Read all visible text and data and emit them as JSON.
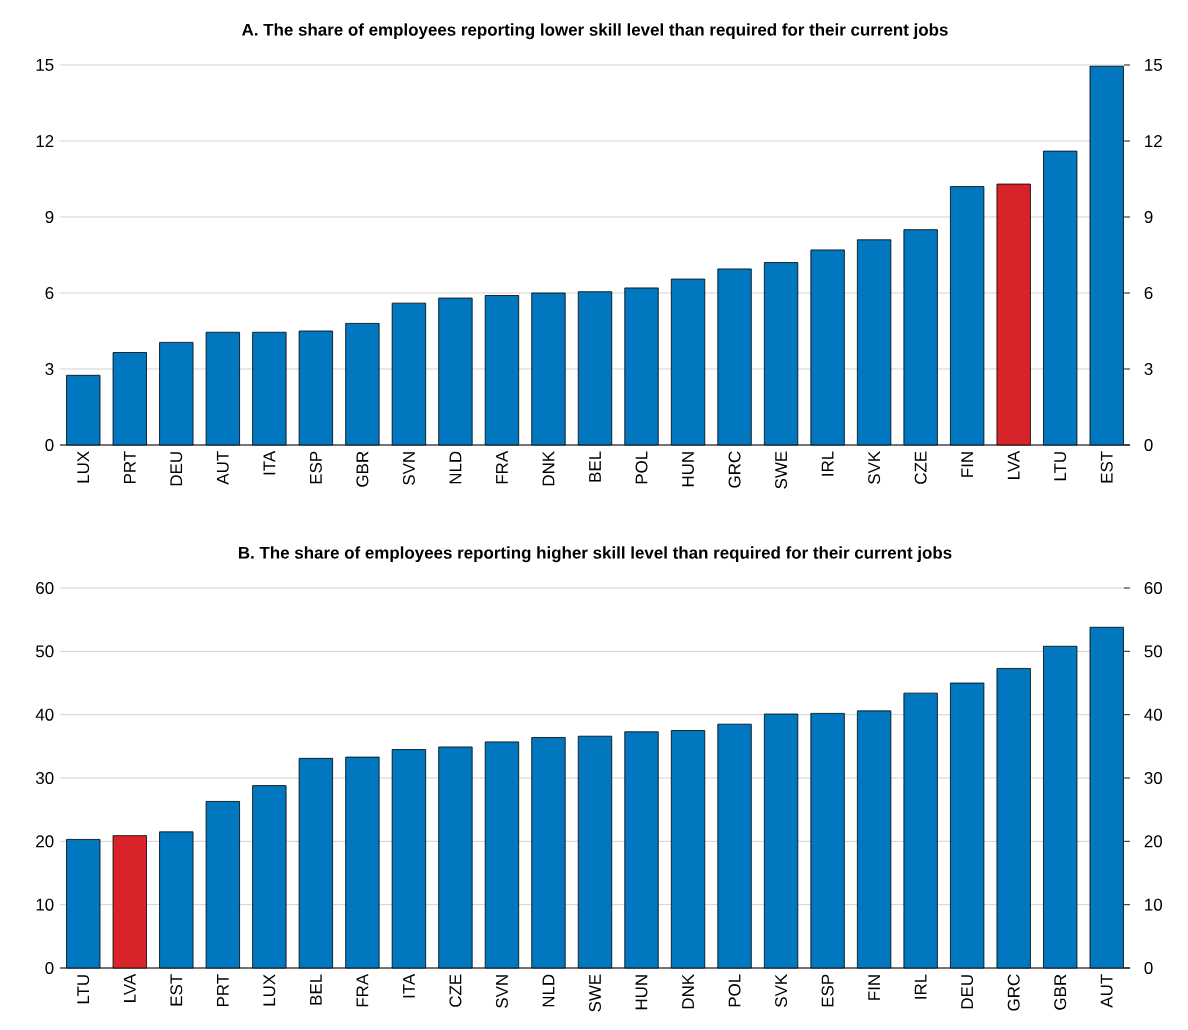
{
  "chart_data": [
    {
      "type": "bar",
      "title": "**A. The share of employees reporting lower skill level than required for their current jobs**",
      "categories": [
        "LUX",
        "PRT",
        "DEU",
        "AUT",
        "ITA",
        "ESP",
        "GBR",
        "SVN",
        "NLD",
        "FRA",
        "DNK",
        "BEL",
        "POL",
        "HUN",
        "GRC",
        "SWE",
        "IRL",
        "SVK",
        "CZE",
        "FIN",
        "LVA",
        "LTU",
        "EST"
      ],
      "values": [
        2.75,
        3.65,
        4.05,
        4.45,
        4.45,
        4.5,
        4.8,
        5.6,
        5.8,
        5.9,
        6.0,
        6.05,
        6.2,
        6.55,
        6.95,
        7.2,
        7.7,
        8.1,
        8.5,
        10.2,
        10.3,
        11.6,
        14.95
      ],
      "colors": [
        "#0077be",
        "#0077be",
        "#0077be",
        "#0077be",
        "#0077be",
        "#0077be",
        "#0077be",
        "#0077be",
        "#0077be",
        "#0077be",
        "#0077be",
        "#0077be",
        "#0077be",
        "#0077be",
        "#0077be",
        "#0077be",
        "#0077be",
        "#0077be",
        "#0077be",
        "#0077be",
        "#d9232a",
        "#0077be",
        "#0077be"
      ],
      "ylim": [
        0,
        15
      ],
      "yticks": [
        0,
        3,
        6,
        9,
        12,
        15
      ],
      "y2lim": [
        0,
        15
      ],
      "y2ticks": [
        0,
        3,
        6,
        9,
        12,
        15
      ],
      "grid": "y"
    },
    {
      "type": "bar",
      "title": "**B. The share of employees reporting higher skill level than required for their current jobs**",
      "categories": [
        "LTU",
        "LVA",
        "EST",
        "PRT",
        "LUX",
        "BEL",
        "FRA",
        "ITA",
        "CZE",
        "SVN",
        "NLD",
        "SWE",
        "HUN",
        "DNK",
        "POL",
        "SVK",
        "ESP",
        "FIN",
        "IRL",
        "DEU",
        "GRC",
        "GBR",
        "AUT"
      ],
      "values": [
        20.3,
        20.9,
        21.5,
        26.3,
        28.8,
        33.1,
        33.3,
        34.5,
        34.9,
        35.7,
        36.4,
        36.6,
        37.3,
        37.5,
        38.5,
        40.1,
        40.2,
        40.6,
        43.4,
        45.0,
        47.3,
        50.8,
        53.8
      ],
      "colors": [
        "#0077be",
        "#d9232a",
        "#0077be",
        "#0077be",
        "#0077be",
        "#0077be",
        "#0077be",
        "#0077be",
        "#0077be",
        "#0077be",
        "#0077be",
        "#0077be",
        "#0077be",
        "#0077be",
        "#0077be",
        "#0077be",
        "#0077be",
        "#0077be",
        "#0077be",
        "#0077be",
        "#0077be",
        "#0077be",
        "#0077be"
      ],
      "ylim": [
        0,
        60
      ],
      "yticks": [
        0,
        10,
        20,
        30,
        40,
        50,
        60
      ],
      "y2lim": [
        0,
        60
      ],
      "y2ticks": [
        0,
        10,
        20,
        30,
        40,
        50,
        60
      ],
      "grid": "y"
    }
  ]
}
